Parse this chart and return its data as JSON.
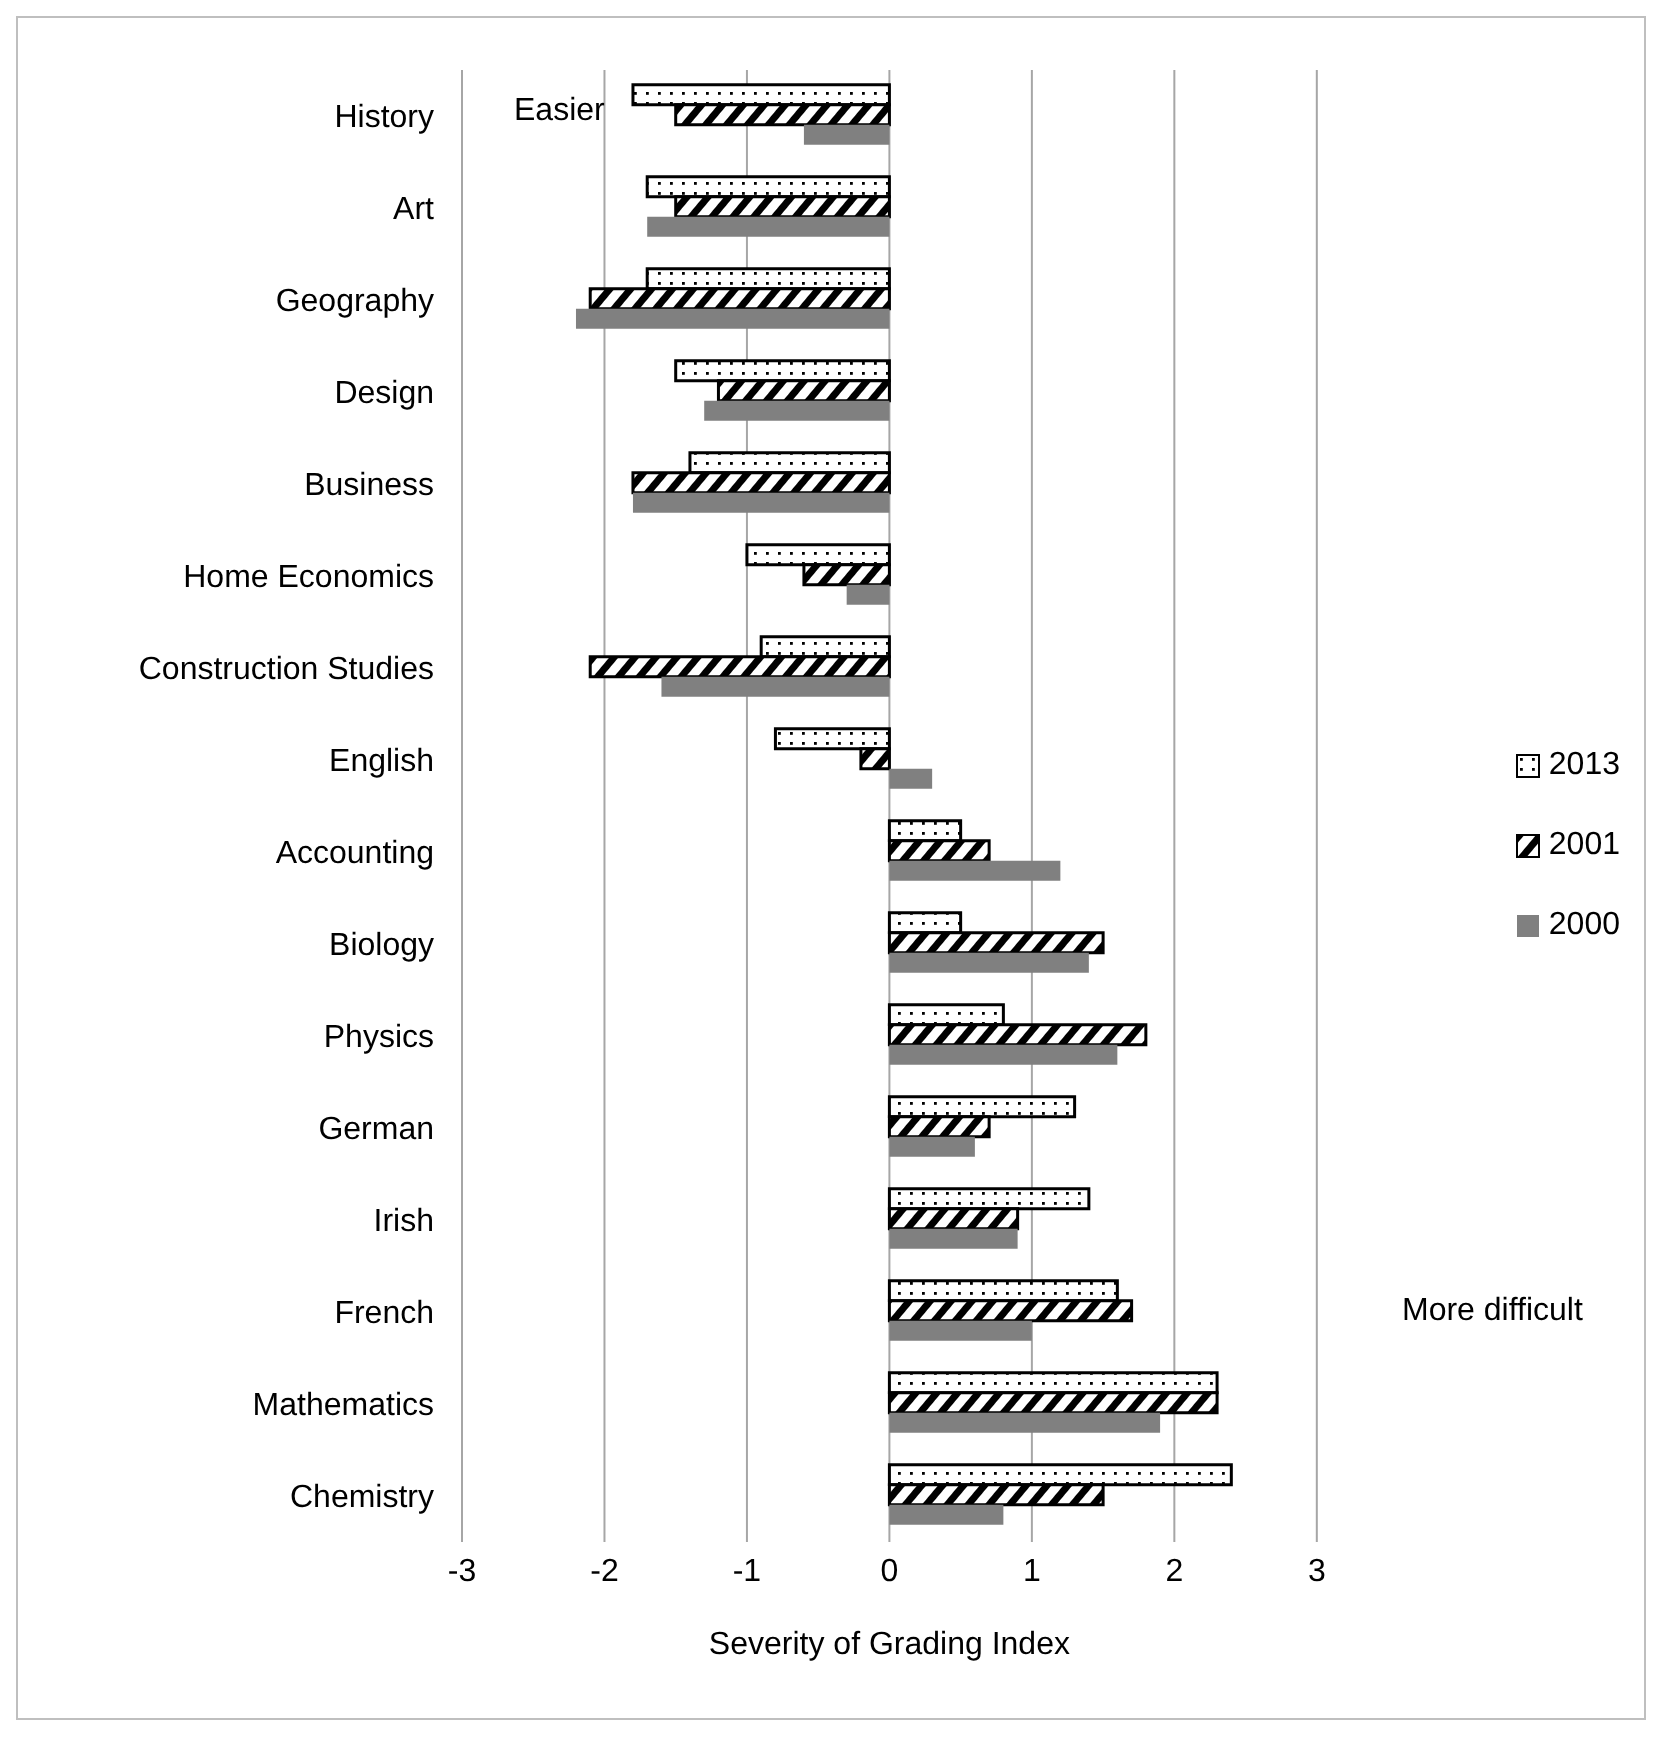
{
  "chart_data": {
    "type": "bar",
    "orientation": "horizontal",
    "xlabel": "Severity of Grading Index",
    "categories": [
      "History",
      "Art",
      "Geography",
      "Design",
      "Business",
      "Home Economics",
      "Construction Studies",
      "English",
      "Accounting",
      "Biology",
      "Physics",
      "German",
      "Irish",
      "French",
      "Mathematics",
      "Chemistry"
    ],
    "series": [
      {
        "name": "2013",
        "color": "#000000",
        "values": [
          -1.8,
          -1.7,
          -1.7,
          -1.5,
          -1.4,
          -1.0,
          -0.9,
          -0.8,
          0.5,
          0.5,
          0.8,
          1.3,
          1.4,
          1.6,
          2.3,
          2.4
        ]
      },
      {
        "name": "2001",
        "color": "#000000",
        "values": [
          -1.5,
          -1.5,
          -2.1,
          -1.2,
          -1.8,
          -0.6,
          -2.1,
          -0.2,
          0.7,
          1.5,
          1.8,
          0.7,
          0.9,
          1.7,
          2.3,
          1.5
        ]
      },
      {
        "name": "2000",
        "color": "#808080",
        "values": [
          -0.6,
          -1.7,
          -2.2,
          -1.3,
          -1.8,
          -0.3,
          -1.6,
          0.3,
          1.2,
          1.4,
          1.6,
          0.6,
          0.9,
          1.0,
          1.9,
          0.8
        ]
      }
    ],
    "xlim": [
      -3,
      3
    ],
    "xticks": [
      -3,
      -2,
      -1,
      0,
      1,
      2,
      3
    ],
    "grid": "x",
    "legend": "right",
    "annotations": [
      "Easier",
      "More difficult"
    ]
  }
}
